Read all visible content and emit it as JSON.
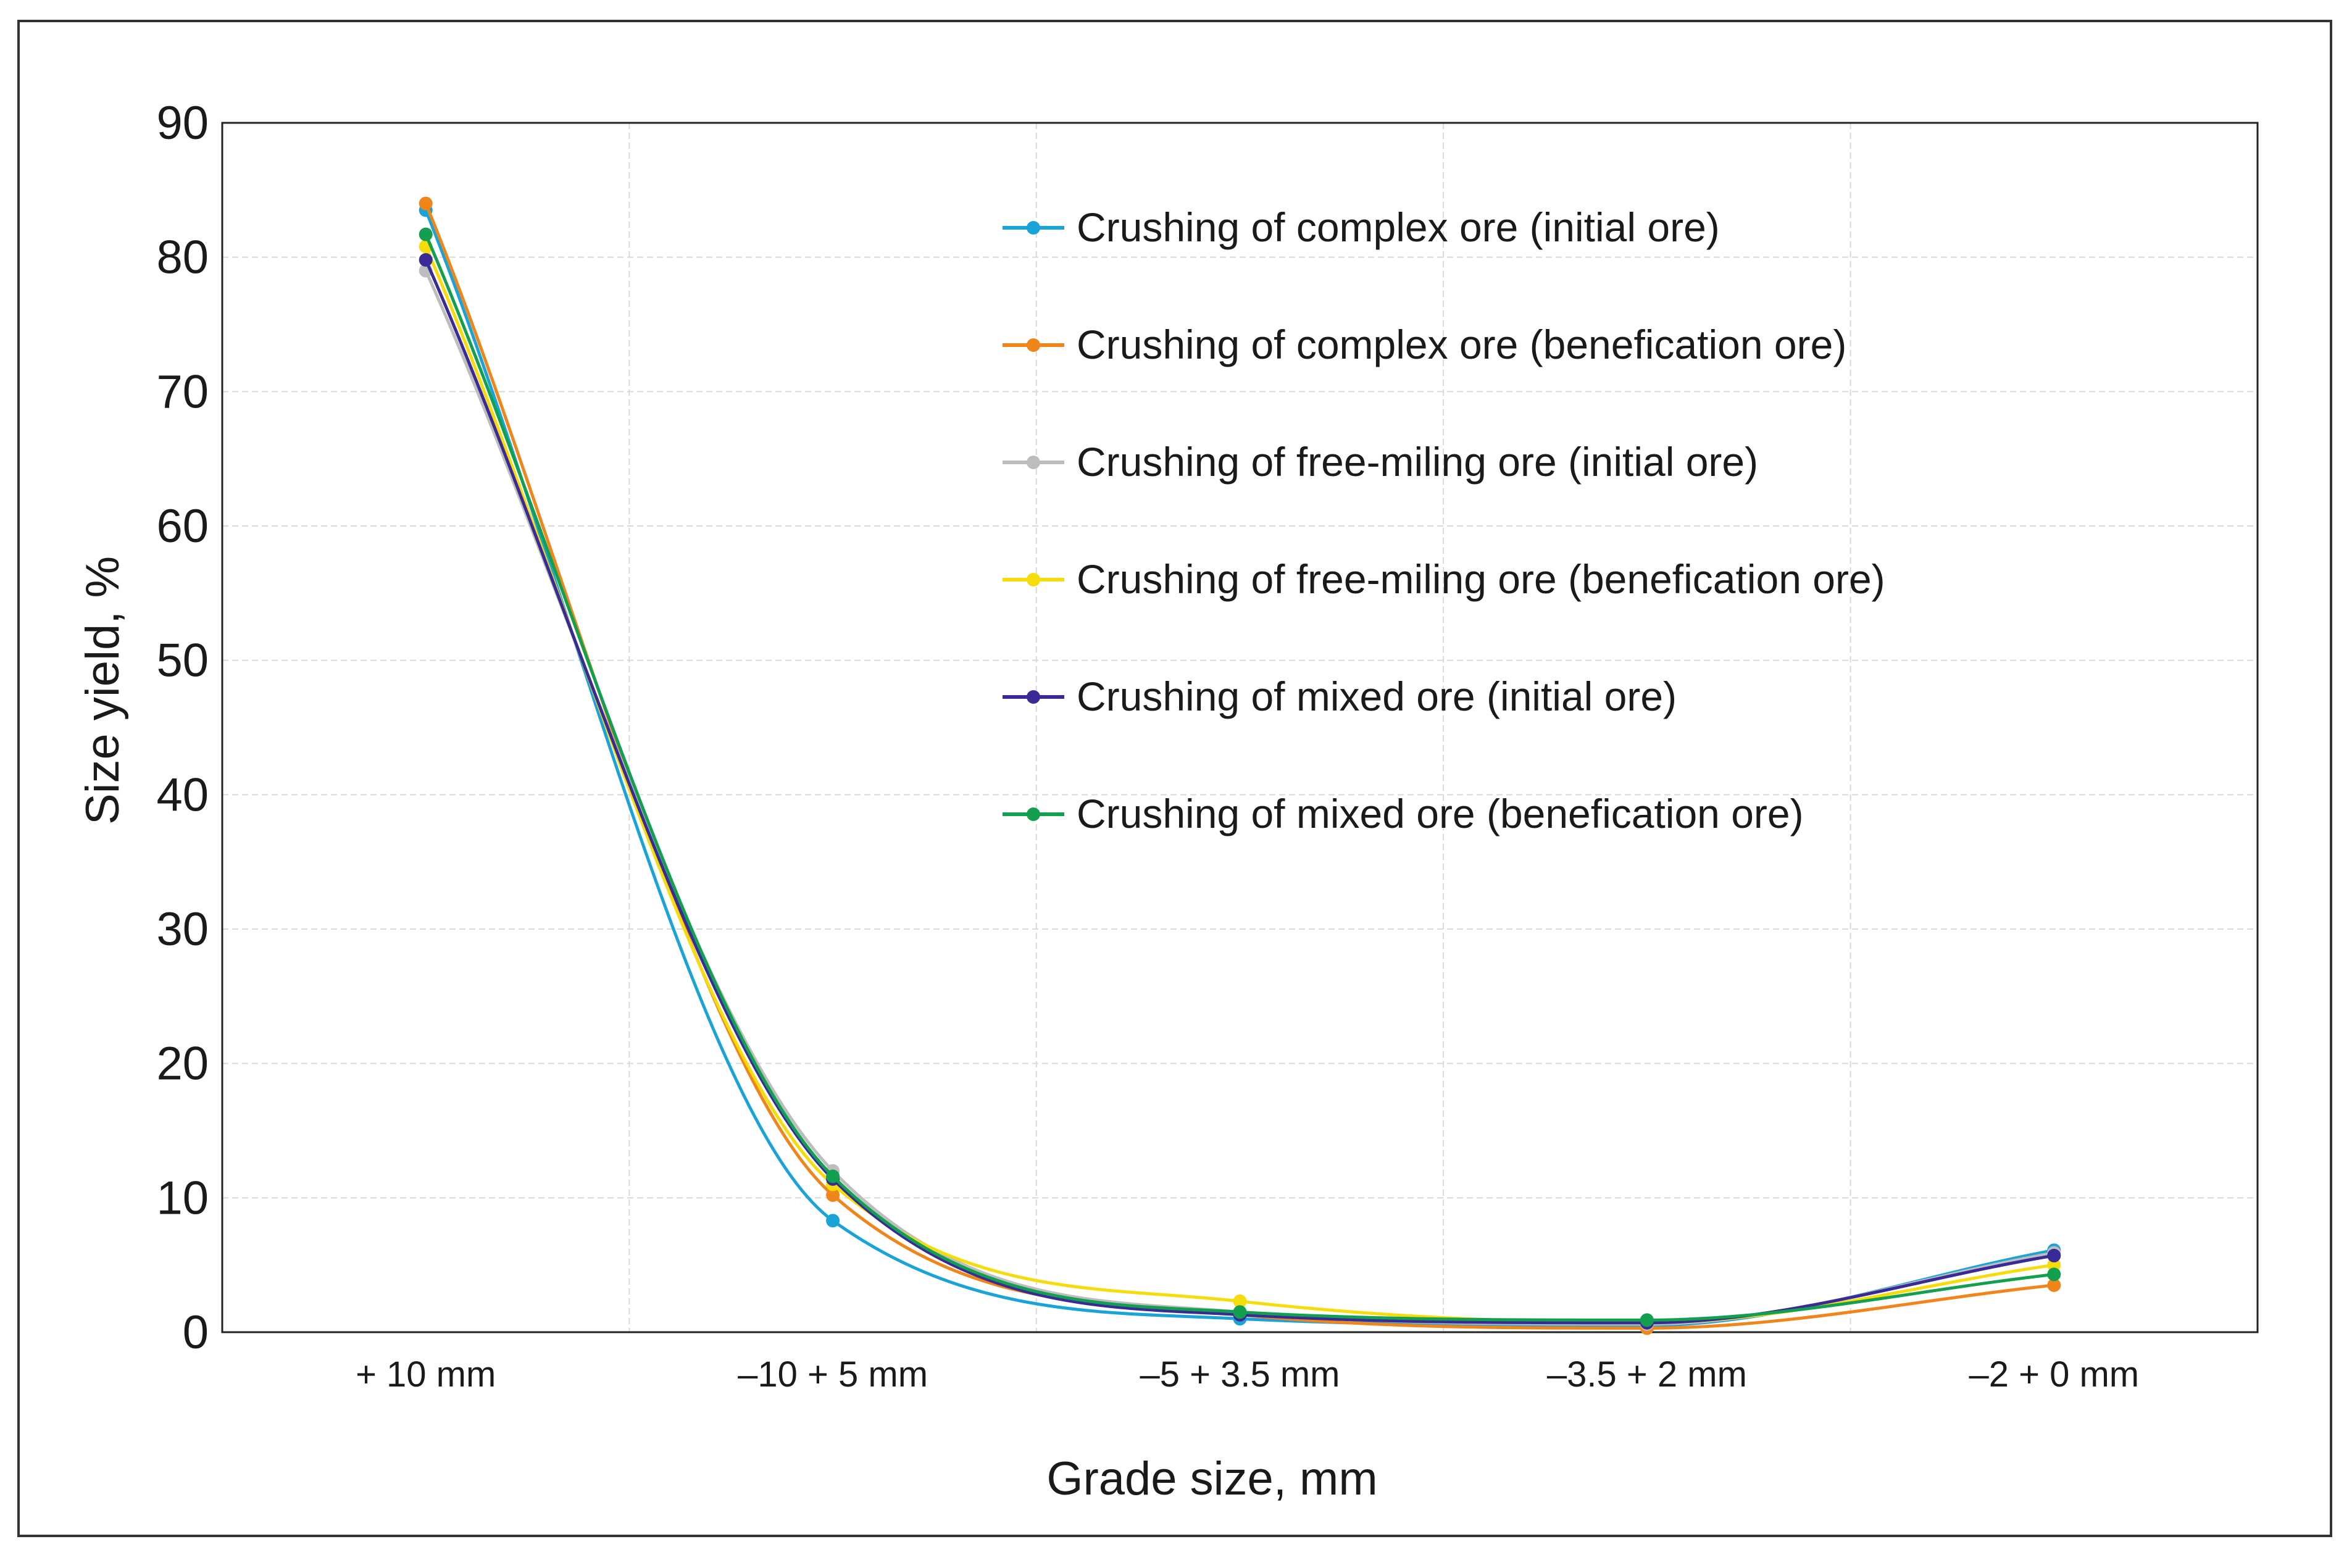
{
  "chart_data": {
    "type": "line",
    "title": "",
    "xlabel": "Grade size, mm",
    "ylabel": "Size yield, %",
    "categories": [
      "+ 10 mm",
      "–10 + 5 mm",
      "–5 + 3.5 mm",
      "–3.5 + 2 mm",
      "–2 + 0 mm"
    ],
    "ylim": [
      0,
      90
    ],
    "yticks": [
      0,
      10,
      20,
      30,
      40,
      50,
      60,
      70,
      80,
      90
    ],
    "grid": true,
    "legend_position": "top-right",
    "series": [
      {
        "name": "Crushing of complex ore (initial ore)",
        "color": "#1AA3D6",
        "values": [
          83.5,
          8.3,
          1.0,
          0.5,
          6.1
        ]
      },
      {
        "name": "Crushing of complex ore (benefication ore)",
        "color": "#F08519",
        "values": [
          84.0,
          10.2,
          1.3,
          0.3,
          3.5
        ]
      },
      {
        "name": "Crushing of free-miling ore (initial ore)",
        "color": "#BDBDBD",
        "values": [
          79.0,
          12.0,
          1.5,
          0.6,
          5.9
        ]
      },
      {
        "name": "Crushing of free-miling ore (benefication ore)",
        "color": "#F5DC0A",
        "values": [
          80.8,
          11.0,
          2.3,
          0.7,
          5.0
        ]
      },
      {
        "name": "Crushing of mixed ore (initial ore)",
        "color": "#3A2A96",
        "values": [
          79.8,
          11.4,
          1.3,
          0.7,
          5.7
        ]
      },
      {
        "name": "Crushing of mixed ore (benefication ore)",
        "color": "#12A050",
        "values": [
          81.7,
          11.6,
          1.5,
          0.9,
          4.3
        ]
      }
    ]
  }
}
